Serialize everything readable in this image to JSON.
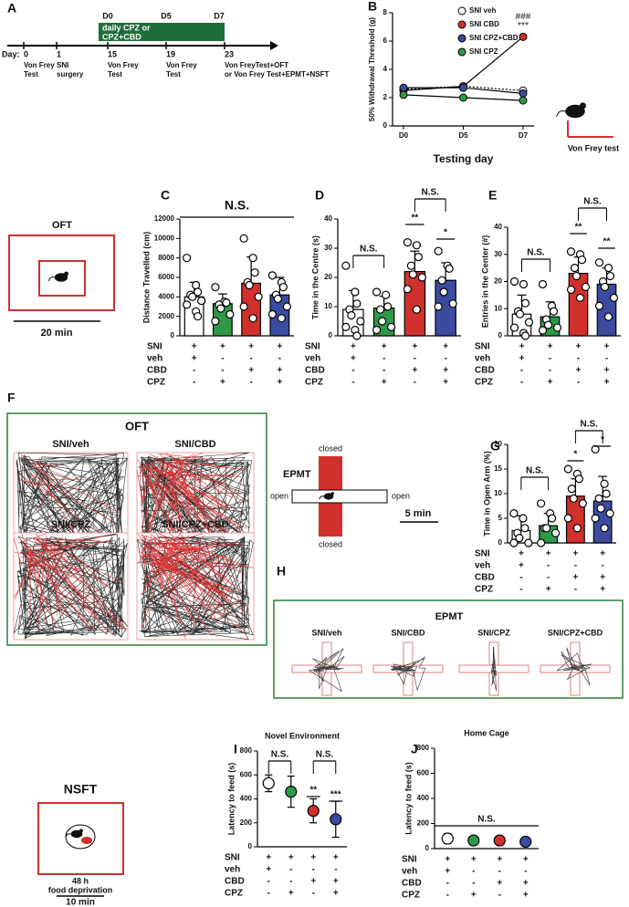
{
  "panel_labels": [
    "A",
    "B",
    "C",
    "D",
    "E",
    "F",
    "G",
    "H",
    "I",
    "J"
  ],
  "timeline": {
    "day_label": "Day:",
    "days": [
      "0",
      "1",
      "15",
      "19",
      "23"
    ],
    "day_notes": [
      [
        "Von Frey",
        "Test"
      ],
      [
        "SNI",
        "surgery"
      ],
      [
        "Von Frey",
        "Test"
      ],
      [
        "Von Frey",
        "Test"
      ],
      [
        "Von FreyTest+OFT",
        "or Von Frey Test+EPMT+NSFT"
      ]
    ],
    "treatment_days": [
      "D0",
      "D5",
      "D7"
    ],
    "treatment": [
      "daily CPZ or",
      "CPZ+CBD"
    ]
  },
  "von_frey_icon": "Von Frey test",
  "oft_icon": {
    "title": "OFT",
    "scale": "20 min"
  },
  "oft_tracks": {
    "title": "OFT",
    "groups": [
      "SNI/veh",
      "SNI/CBD",
      "SNI/CPZ",
      "SNI/CPZ+CBD"
    ]
  },
  "epmt_icon": {
    "title": "EPMT",
    "arms": [
      "closed",
      "open",
      "open",
      "closed"
    ],
    "scale": "5 min"
  },
  "epmt_tracks": {
    "title": "EPMT",
    "groups": [
      "SNI/veh",
      "SNI/CBD",
      "SNI/CPZ",
      "SNI/CPZ+CBD"
    ]
  },
  "nsft_icon": {
    "title": "NSFT",
    "caption": [
      "48 h",
      "food deprivation"
    ],
    "scale": "10 min"
  },
  "chart_data": [
    {
      "type": "line",
      "ylabel": "50% Withdrawal Threshold (g)",
      "xlabel": "Testing day",
      "categories": [
        "D0",
        "D5",
        "D7"
      ],
      "ylim": [
        0,
        8
      ],
      "yticks": [
        0,
        2,
        4,
        6,
        8
      ],
      "series": [
        {
          "name": "SNI veh",
          "color": "#ffffff",
          "style": "dotted",
          "values": [
            2.6,
            2.8,
            2.5
          ]
        },
        {
          "name": "SNI CBD",
          "color": "#d0312d",
          "style": "solid",
          "values": [
            2.5,
            2.8,
            6.3
          ]
        },
        {
          "name": "SNI CPZ+CBD",
          "color": "#3c4ba0",
          "style": "solid",
          "values": [
            2.7,
            2.7,
            2.3
          ]
        },
        {
          "name": "SNI CPZ",
          "color": "#2e9a47",
          "style": "solid",
          "values": [
            2.2,
            2.0,
            1.8
          ]
        }
      ],
      "annotations": [
        "###",
        "***"
      ]
    },
    {
      "type": "bar",
      "ylabel": "Distance Travelled (cm)",
      "ylim": [
        0,
        12000
      ],
      "yticks": [
        0,
        2000,
        4000,
        6000,
        8000,
        10000,
        12000
      ],
      "values": [
        4000,
        3300,
        5400,
        4200
      ],
      "errors": [
        1500,
        1000,
        2700,
        1800
      ],
      "colors": [
        "#ffffff",
        "#2e9a47",
        "#d0312d",
        "#3c4ba0"
      ],
      "points": [
        [
          8000,
          5200,
          4500,
          4200,
          4000,
          3600,
          3200,
          2500,
          2000
        ],
        [
          5000,
          3500,
          3400,
          3200,
          2800,
          2200,
          1500
        ],
        [
          10000,
          8000,
          6500,
          5500,
          5200,
          4000,
          3000,
          1800
        ],
        [
          6200,
          5500,
          5000,
          4200,
          3800,
          3000,
          2200,
          1800
        ]
      ],
      "group_rows": [
        "SNI",
        "veh",
        "CBD",
        "CPZ"
      ],
      "group_signs": [
        [
          "+",
          "+",
          "+",
          "+"
        ],
        [
          "+",
          "-",
          "-",
          "-"
        ],
        [
          "-",
          "-",
          "+",
          "+"
        ],
        [
          "-",
          "+",
          "-",
          "+"
        ]
      ],
      "annotations": [
        "N.S."
      ]
    },
    {
      "type": "bar",
      "ylabel": "Time in the Centre (s)",
      "ylim": [
        0,
        40
      ],
      "yticks": [
        0,
        10,
        20,
        30,
        40
      ],
      "values": [
        9,
        9.5,
        22,
        19
      ],
      "errors": [
        6.5,
        4,
        7,
        6
      ],
      "colors": [
        "#ffffff",
        "#2e9a47",
        "#d0312d",
        "#3c4ba0"
      ],
      "points": [
        [
          24,
          15,
          11,
          9,
          7,
          5,
          3,
          2,
          0
        ],
        [
          15,
          14,
          10,
          9,
          5,
          3,
          2
        ],
        [
          32,
          31,
          27,
          24,
          21,
          20,
          16,
          9
        ],
        [
          29,
          24,
          23,
          19,
          15,
          11,
          10
        ]
      ],
      "group_rows": [
        "SNI",
        "veh",
        "CBD",
        "CPZ"
      ],
      "group_signs": [
        [
          "+",
          "+",
          "+",
          "+"
        ],
        [
          "+",
          "-",
          "-",
          "-"
        ],
        [
          "-",
          "-",
          "+",
          "+"
        ],
        [
          "-",
          "+",
          "-",
          "+"
        ]
      ],
      "annotations": [
        "N.S.",
        "**",
        "N.S.",
        "*"
      ]
    },
    {
      "type": "bar",
      "ylabel": "Entries in the Center (#)",
      "ylim": [
        0,
        40
      ],
      "yticks": [
        0,
        10,
        20,
        30,
        40
      ],
      "values": [
        8,
        7,
        23,
        19
      ],
      "errors": [
        7,
        5.5,
        6,
        6
      ],
      "colors": [
        "#ffffff",
        "#2e9a47",
        "#d0312d",
        "#3c4ba0"
      ],
      "points": [
        [
          20,
          19,
          12,
          9,
          8,
          5,
          3,
          1,
          0
        ],
        [
          19,
          11,
          9,
          6,
          4,
          3,
          2
        ],
        [
          31,
          30,
          28,
          25,
          22,
          18,
          17,
          14
        ],
        [
          27,
          25,
          22,
          20,
          18,
          14,
          11,
          7
        ]
      ],
      "group_rows": [
        "SNI",
        "veh",
        "CBD",
        "CPZ"
      ],
      "group_signs": [
        [
          "+",
          "+",
          "+",
          "+"
        ],
        [
          "+",
          "-",
          "-",
          "-"
        ],
        [
          "-",
          "-",
          "+",
          "+"
        ],
        [
          "-",
          "+",
          "-",
          "+"
        ]
      ],
      "annotations": [
        "N.S.",
        "**",
        "N.S.",
        "**"
      ]
    },
    {
      "type": "bar",
      "ylabel": "Time in Open Arm (%)",
      "ylim": [
        0,
        20
      ],
      "yticks": [
        0,
        5,
        10,
        15,
        20
      ],
      "values": [
        2.5,
        3.5,
        9.5,
        8.5
      ],
      "errors": [
        3,
        2.5,
        3.5,
        5
      ],
      "colors": [
        "#ffffff",
        "#2e9a47",
        "#d0312d",
        "#3c4ba0"
      ],
      "points": [
        [
          6,
          5,
          3,
          2,
          1,
          0,
          0
        ],
        [
          8,
          6,
          5,
          3,
          3,
          2,
          0
        ],
        [
          15,
          14,
          13,
          11,
          9,
          8,
          5,
          3
        ],
        [
          19,
          12,
          10,
          9,
          7,
          6,
          5,
          3
        ]
      ],
      "group_rows": [
        "SNI",
        "veh",
        "CBD",
        "CPZ"
      ],
      "group_signs": [
        [
          "+",
          "+",
          "+",
          "+"
        ],
        [
          "+",
          "-",
          "-",
          "-"
        ],
        [
          "-",
          "-",
          "+",
          "+"
        ],
        [
          "-",
          "+",
          "-",
          "+"
        ]
      ],
      "annotations": [
        "N.S.",
        "*",
        "N.S.",
        "*"
      ]
    },
    {
      "type": "dot",
      "title": "Novel Environment",
      "ylabel": "Latency to feed (s)",
      "ylim": [
        0,
        800
      ],
      "yticks": [
        0,
        200,
        400,
        600,
        800
      ],
      "values": [
        530,
        460,
        300,
        230
      ],
      "errors": [
        70,
        130,
        100,
        150
      ],
      "colors": [
        "#ffffff",
        "#2e9a47",
        "#d0312d",
        "#3c4ba0"
      ],
      "group_rows": [
        "SNI",
        "veh",
        "CBD",
        "CPZ"
      ],
      "group_signs": [
        [
          "+",
          "+",
          "+",
          "+"
        ],
        [
          "+",
          "-",
          "-",
          "-"
        ],
        [
          "-",
          "-",
          "+",
          "+"
        ],
        [
          "-",
          "+",
          "-",
          "+"
        ]
      ],
      "annotations": [
        "N.S.",
        "**",
        "N.S.",
        "***"
      ]
    },
    {
      "type": "dot",
      "title": "Home Cage",
      "ylabel": "Latency to feed (s)",
      "ylim": [
        0,
        800
      ],
      "yticks": [
        0,
        200,
        400,
        600,
        800
      ],
      "values": [
        80,
        65,
        65,
        55
      ],
      "errors": [
        40,
        15,
        20,
        30
      ],
      "colors": [
        "#ffffff",
        "#2e9a47",
        "#d0312d",
        "#3c4ba0"
      ],
      "group_rows": [
        "SNI",
        "veh",
        "CBD",
        "CPZ"
      ],
      "group_signs": [
        [
          "+",
          "+",
          "+",
          "+"
        ],
        [
          "+",
          "-",
          "-",
          "-"
        ],
        [
          "-",
          "-",
          "+",
          "+"
        ],
        [
          "-",
          "+",
          "-",
          "+"
        ]
      ],
      "annotations": [
        "N.S."
      ]
    }
  ]
}
